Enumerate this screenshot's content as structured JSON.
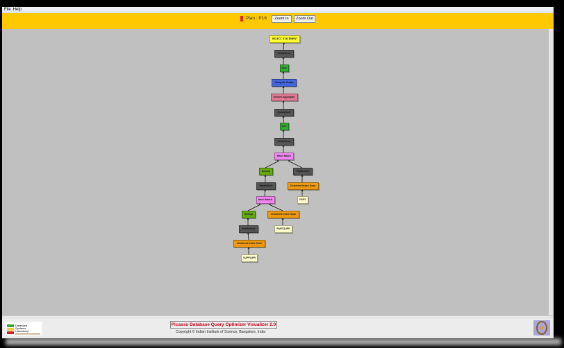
{
  "menu": [
    "File",
    "Help"
  ],
  "toolbar": {
    "plan_label": "Plan : P16",
    "plan_color": "#e8262b",
    "zoom_in": "Zoom In",
    "zoom_out": "Zoom Out"
  },
  "node_colors": {
    "select": "#ffff33",
    "parallelism": "#555555",
    "sort": "#33aa33",
    "compute": "#4466dd",
    "aggregate": "#e07a95",
    "hash": "#ee88ee",
    "bitmap": "#66aa11",
    "scan": "#ee9911",
    "table": "#ffffcc"
  },
  "plan_tree": [
    {
      "label": "SELECT STATEMENT",
      "type": "select"
    },
    {
      "label": "Parallelism",
      "type": "parallelism",
      "parent": 0
    },
    {
      "label": "Sort",
      "type": "sort",
      "parent": 1
    },
    {
      "label": "Compute Scalar",
      "type": "compute",
      "parent": 2
    },
    {
      "label": "Stream Aggregate",
      "type": "aggregate",
      "parent": 3
    },
    {
      "label": "Parallelism",
      "type": "parallelism",
      "parent": 4
    },
    {
      "label": "Sort",
      "type": "sort",
      "parent": 5
    },
    {
      "label": "Parallelism",
      "type": "parallelism",
      "parent": 6
    },
    {
      "label": "Hash Match",
      "type": "hash",
      "parent": 7
    },
    {
      "label": "Bitmap",
      "type": "bitmap",
      "parent": 8
    },
    {
      "label": "Parallelism",
      "type": "parallelism",
      "parent": 8
    },
    {
      "label": "Parallelism",
      "type": "parallelism",
      "parent": 9
    },
    {
      "label": "Clustered Index Scan",
      "type": "scan",
      "parent": 10
    },
    {
      "label": "Hash Match",
      "type": "hash",
      "parent": 11
    },
    {
      "label": "PART",
      "type": "table",
      "parent": 12
    },
    {
      "label": "Bitmap",
      "type": "bitmap",
      "parent": 13
    },
    {
      "label": "Clustered Index Scan",
      "type": "scan",
      "parent": 13
    },
    {
      "label": "Parallelism",
      "type": "parallelism",
      "parent": 15
    },
    {
      "label": "PARTSUPP",
      "type": "table",
      "parent": 16
    },
    {
      "label": "Clustered Index Scan",
      "type": "scan",
      "parent": 17
    },
    {
      "label": "SUPPLIER",
      "type": "table",
      "parent": 19
    }
  ],
  "footer": {
    "title": "Picasso Database Query Optimizer Visualizer 2.0",
    "copyright": "Copyright © Indian Institute of Science, Bangalore, India",
    "logo_text": "Database Systems Laboratory"
  }
}
